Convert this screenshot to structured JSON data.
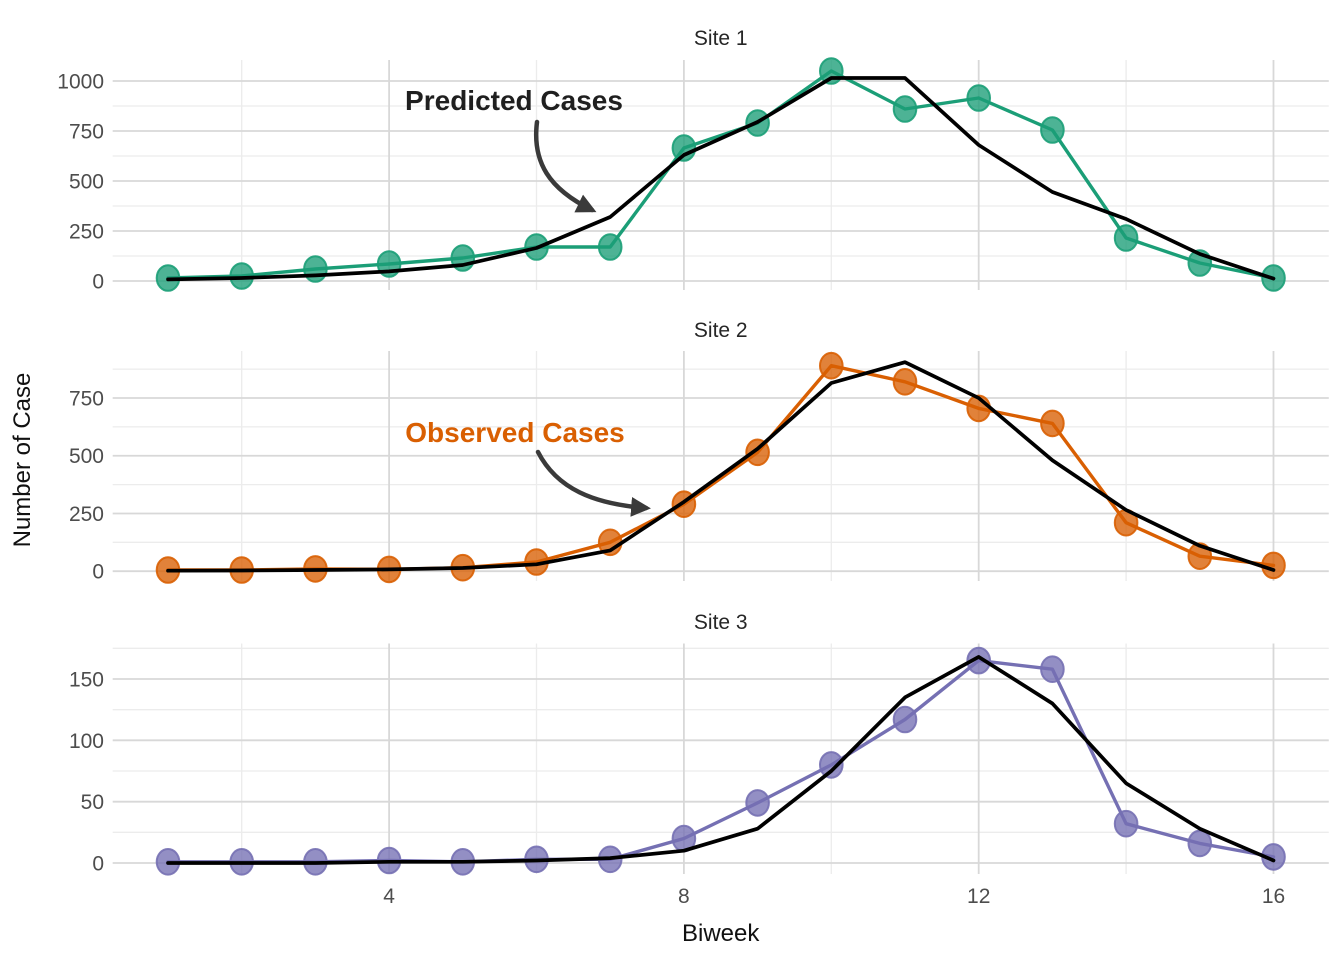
{
  "chart_data": {
    "type": "line",
    "title": "",
    "xlabel": "Biweek",
    "ylabel": "Number of Case",
    "x": [
      1,
      2,
      3,
      4,
      5,
      6,
      7,
      8,
      9,
      10,
      11,
      12,
      13,
      14,
      15,
      16
    ],
    "x_ticks": [
      4,
      8,
      12,
      16
    ],
    "x_minor": [
      2,
      6,
      10,
      14
    ],
    "legend_position": "none",
    "grid": "major+minor",
    "series_meaning": {
      "predicted": "black line, model-predicted cases per biweek",
      "observed": "colored points and line, observed cases per biweek"
    },
    "facets": [
      {
        "title": "Site 1",
        "color": "#1B9E77",
        "y_ticks": [
          0,
          250,
          500,
          750,
          1000
        ],
        "y_minor": [
          125,
          375,
          625,
          875
        ],
        "ylim": [
          -45,
          1105
        ],
        "observed": [
          15,
          25,
          60,
          85,
          115,
          170,
          170,
          665,
          790,
          1050,
          860,
          915,
          755,
          215,
          90,
          15
        ],
        "predicted": [
          8,
          15,
          28,
          48,
          80,
          165,
          320,
          630,
          795,
          1015,
          1015,
          680,
          445,
          310,
          135,
          12
        ]
      },
      {
        "title": "Site 2",
        "color": "#D95F02",
        "y_ticks": [
          0,
          250,
          500,
          750
        ],
        "y_minor": [
          125,
          375,
          625,
          875
        ],
        "ylim": [
          -45,
          952
        ],
        "observed": [
          5,
          5,
          10,
          8,
          15,
          40,
          125,
          290,
          515,
          890,
          820,
          705,
          640,
          210,
          65,
          25
        ],
        "predicted": [
          2,
          3,
          5,
          8,
          14,
          30,
          90,
          300,
          530,
          815,
          905,
          750,
          480,
          265,
          110,
          5
        ]
      },
      {
        "title": "Site 3",
        "color": "#7570B3",
        "y_ticks": [
          0,
          50,
          100,
          150
        ],
        "y_minor": [
          25,
          75,
          125,
          175
        ],
        "ylim": [
          -9,
          179
        ],
        "observed": [
          1,
          1,
          1,
          2,
          1,
          3,
          3,
          20,
          49,
          80,
          117,
          165,
          158,
          32,
          16,
          5
        ],
        "predicted": [
          0,
          0,
          0,
          1,
          1,
          2,
          4,
          10,
          28,
          75,
          135,
          168,
          130,
          65,
          28,
          2
        ]
      }
    ],
    "annotations": [
      {
        "text": "Predicted Cases",
        "color": "#1f1f1f",
        "points_to": "predicted line, Site 1, biweek 7"
      },
      {
        "text": "Observed Cases",
        "color": "#D95F02",
        "points_to": "observed point, Site 2, biweek 8"
      }
    ],
    "colors": {
      "predicted_line": "#000000",
      "arrow": "#3a3a3a",
      "grid_major": "#d8d8d8",
      "grid_minor": "#ececec",
      "tick_text": "#4d4d4d",
      "axis_text": "#111111",
      "background": "#ffffff"
    }
  }
}
